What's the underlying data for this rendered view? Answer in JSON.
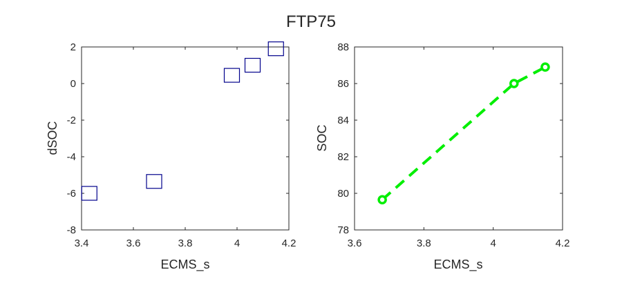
{
  "figure": {
    "title": "FTP75"
  },
  "chart_data": [
    {
      "type": "scatter",
      "xlabel": "ECMS_s",
      "ylabel": "dSOC",
      "xlim": [
        3.4,
        4.2
      ],
      "ylim": [
        -8,
        2
      ],
      "xticks": [
        "3.4",
        "3.6",
        "3.8",
        "4",
        "4.2"
      ],
      "yticks": [
        "-8",
        "-6",
        "-4",
        "-2",
        "0",
        "2"
      ],
      "xtick_values": [
        3.4,
        3.6,
        3.8,
        4.0,
        4.2
      ],
      "ytick_values": [
        -8,
        -6,
        -4,
        -2,
        0,
        2
      ],
      "marker": "square",
      "color": "#00008b",
      "grid": false,
      "points": [
        {
          "x": 3.43,
          "y": -6.0
        },
        {
          "x": 3.68,
          "y": -5.35
        },
        {
          "x": 3.98,
          "y": 0.45
        },
        {
          "x": 4.06,
          "y": 1.0
        },
        {
          "x": 4.15,
          "y": 1.9
        }
      ]
    },
    {
      "type": "line",
      "xlabel": "ECMS_s",
      "ylabel": "SOC",
      "xlim": [
        3.6,
        4.2
      ],
      "ylim": [
        78,
        88
      ],
      "xticks": [
        "3.6",
        "3.8",
        "4",
        "4.2"
      ],
      "yticks": [
        "78",
        "80",
        "82",
        "84",
        "86",
        "88"
      ],
      "xtick_values": [
        3.6,
        3.8,
        4.0,
        4.2
      ],
      "ytick_values": [
        78,
        80,
        82,
        84,
        86,
        88
      ],
      "marker": "circle",
      "line_style": "dashed",
      "color": "#00ee00",
      "grid": false,
      "points": [
        {
          "x": 3.68,
          "y": 79.65
        },
        {
          "x": 4.06,
          "y": 86.0
        },
        {
          "x": 4.15,
          "y": 86.9
        }
      ]
    }
  ]
}
